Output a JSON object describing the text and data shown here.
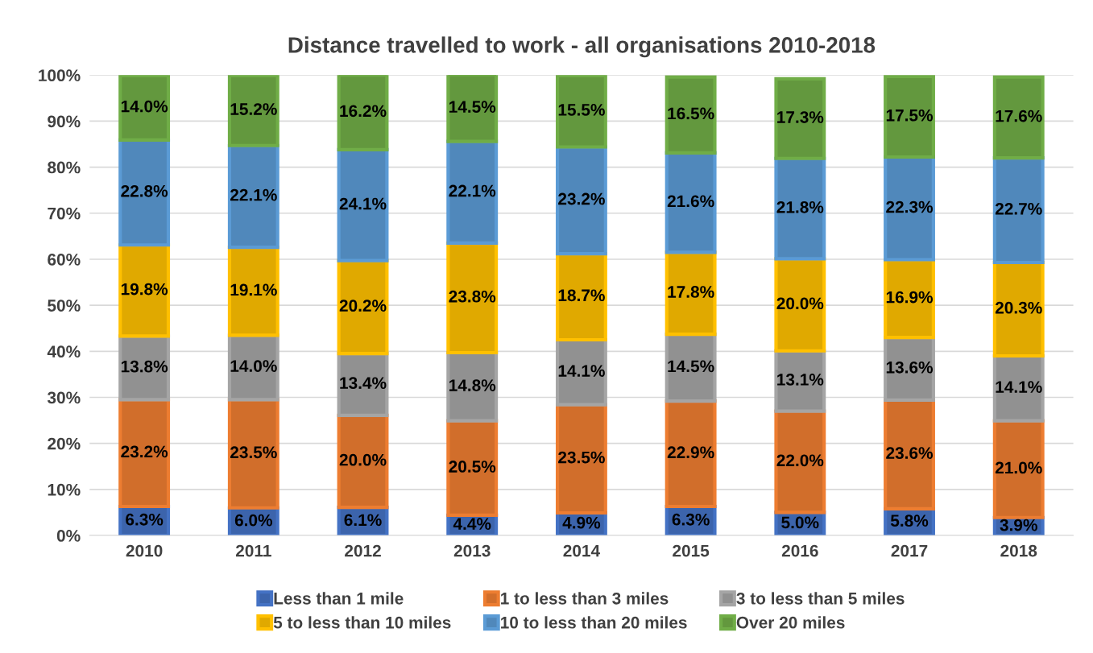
{
  "chart_data": {
    "type": "bar",
    "title": "Distance travelled to work - all organisations 2010-2018",
    "categories": [
      "2010",
      "2011",
      "2012",
      "2013",
      "2014",
      "2015",
      "2016",
      "2017",
      "2018"
    ],
    "stacked": true,
    "grid": "y",
    "legend": "bottom",
    "ylim": [
      0,
      100
    ],
    "yticks": [
      {
        "value": 0,
        "label": "0%"
      },
      {
        "value": 10,
        "label": "10%"
      },
      {
        "value": 20,
        "label": "20%"
      },
      {
        "value": 30,
        "label": "30%"
      },
      {
        "value": 40,
        "label": "40%"
      },
      {
        "value": 50,
        "label": "50%"
      },
      {
        "value": 60,
        "label": "60%"
      },
      {
        "value": 70,
        "label": "70%"
      },
      {
        "value": 80,
        "label": "80%"
      },
      {
        "value": 90,
        "label": "90%"
      },
      {
        "value": 100,
        "label": "100%"
      }
    ],
    "series": [
      {
        "name": "Less than 1 mile",
        "color": "#4472c4",
        "values": [
          6.3,
          6.0,
          6.1,
          4.4,
          4.9,
          6.3,
          5.0,
          5.8,
          3.9
        ],
        "value_labels": [
          "6.3%",
          "6.0%",
          "6.1%",
          "4.4%",
          "4.9%",
          "6.3%",
          "5.0%",
          "5.8%",
          "3.9%"
        ]
      },
      {
        "name": "1 to less than 3 miles",
        "color": "#ed7d31",
        "values": [
          23.2,
          23.5,
          20.0,
          20.5,
          23.5,
          22.9,
          22.0,
          23.6,
          21.0
        ],
        "value_labels": [
          "23.2%",
          "23.5%",
          "20.0%",
          "20.5%",
          "23.5%",
          "22.9%",
          "22.0%",
          "23.6%",
          "21.0%"
        ]
      },
      {
        "name": "3 to less than 5 miles",
        "color": "#a5a5a5",
        "values": [
          13.8,
          14.0,
          13.4,
          14.8,
          14.1,
          14.5,
          13.1,
          13.6,
          14.1
        ],
        "value_labels": [
          "13.8%",
          "14.0%",
          "13.4%",
          "14.8%",
          "14.1%",
          "14.5%",
          "13.1%",
          "13.6%",
          "14.1%"
        ]
      },
      {
        "name": "5 to less than 10 miles",
        "color": "#ffc000",
        "values": [
          19.8,
          19.1,
          20.2,
          23.8,
          18.7,
          17.8,
          20.0,
          16.9,
          20.3
        ],
        "value_labels": [
          "19.8%",
          "19.1%",
          "20.2%",
          "23.8%",
          "18.7%",
          "17.8%",
          "20.0%",
          "16.9%",
          "20.3%"
        ]
      },
      {
        "name": "10 to less than 20 miles",
        "color": "#5b9bd5",
        "values": [
          22.8,
          22.1,
          24.1,
          22.1,
          23.2,
          21.6,
          21.8,
          22.3,
          22.7
        ],
        "value_labels": [
          "22.8%",
          "22.1%",
          "24.1%",
          "22.1%",
          "23.2%",
          "21.6%",
          "21.8%",
          "22.3%",
          "22.7%"
        ]
      },
      {
        "name": "Over 20 miles",
        "color": "#70ad47",
        "values": [
          14.0,
          15.2,
          16.2,
          14.5,
          15.5,
          16.5,
          17.3,
          17.5,
          17.6
        ],
        "value_labels": [
          "14.0%",
          "15.2%",
          "16.2%",
          "14.5%",
          "15.5%",
          "16.5%",
          "17.3%",
          "17.5%",
          "17.6%"
        ]
      }
    ]
  }
}
